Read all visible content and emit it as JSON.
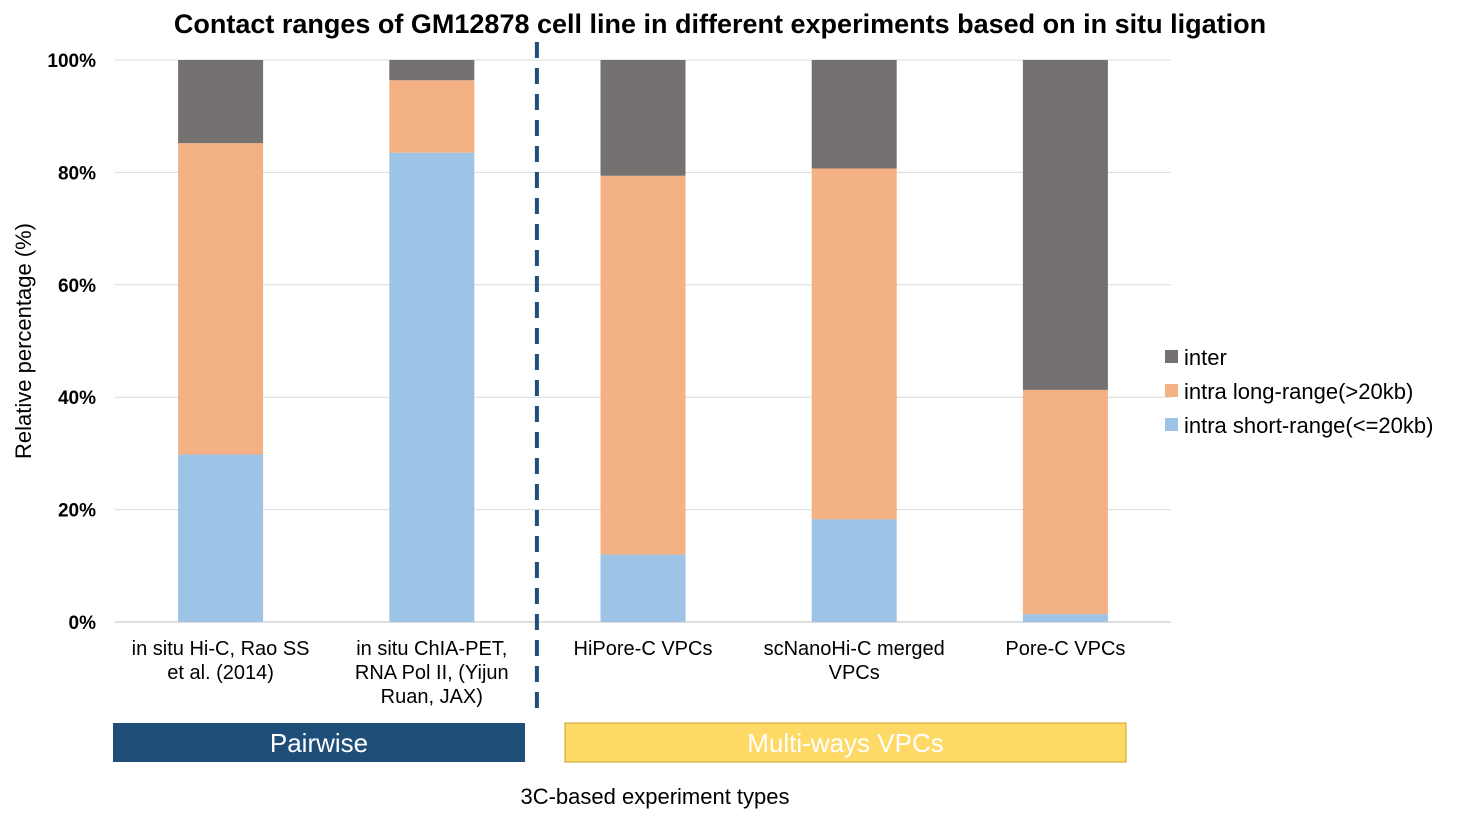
{
  "chart_data": {
    "type": "bar",
    "stacked": true,
    "title": "Contact ranges of GM12878 cell line in different experiments based on in situ ligation",
    "xlabel": "3C-based experiment types",
    "ylabel": "Relative percentage (%)",
    "ylim": [
      0,
      100
    ],
    "yticks": [
      "0%",
      "20%",
      "40%",
      "60%",
      "80%",
      "100%"
    ],
    "grid": true,
    "legend_position": "right",
    "categories": [
      [
        "in situ Hi-C, Rao SS",
        "et al. (2014)"
      ],
      [
        "in situ ChIA-PET,",
        "RNA Pol II, (Yijun",
        "Ruan, JAX)"
      ],
      [
        "HiPore-C VPCs"
      ],
      [
        "scNanoHi-C merged",
        "VPCs"
      ],
      [
        "Pore-C VPCs"
      ]
    ],
    "series": [
      {
        "name": "intra short-range(<=20kb)",
        "color": "#9DC3E6",
        "values": [
          29.8,
          83.5,
          12.0,
          18.3,
          1.4
        ]
      },
      {
        "name": "intra long-range(>20kb)",
        "color": "#F4B183",
        "values": [
          55.4,
          12.9,
          67.4,
          62.4,
          39.9
        ]
      },
      {
        "name": "inter",
        "color": "#767171",
        "values": [
          14.8,
          3.6,
          20.6,
          19.3,
          58.7
        ]
      }
    ],
    "legend_order": [
      "inter",
      "intra long-range(>20kb)",
      "intra short-range(<=20kb)"
    ],
    "groups": [
      {
        "label": "Pairwise",
        "categories": [
          0,
          1
        ],
        "color": "#1F4E79",
        "text_color": "#ffffff"
      },
      {
        "label": "Multi-ways VPCs",
        "categories": [
          2,
          3,
          4
        ],
        "color": "#FFD966",
        "text_color": "#ffffff"
      }
    ],
    "divider": {
      "style": "dashed",
      "color": "#1F4E79",
      "between_categories": [
        1,
        2
      ]
    }
  }
}
